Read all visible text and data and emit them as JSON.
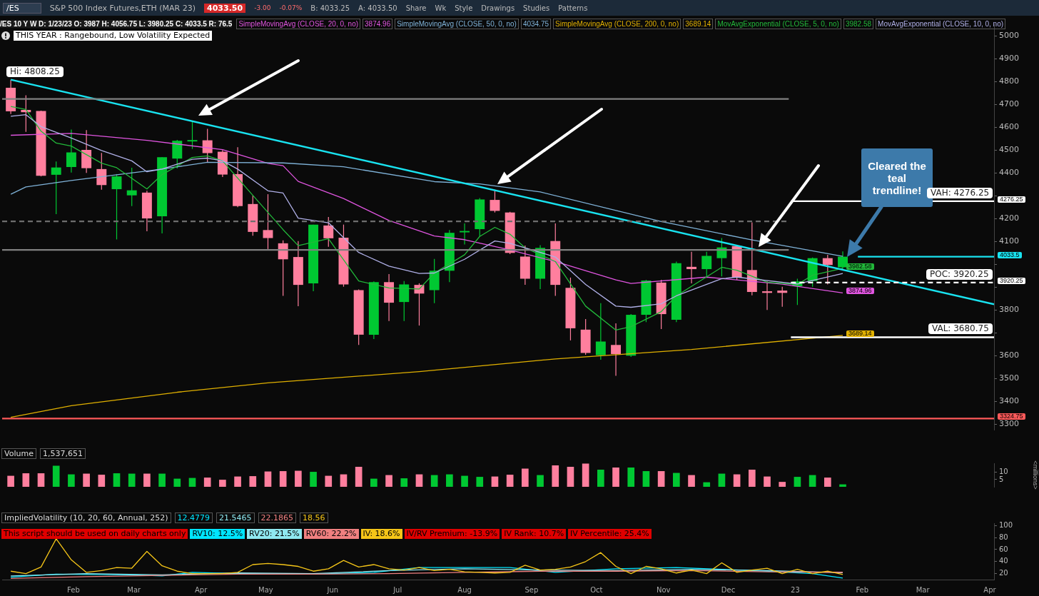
{
  "chart_data": [
    {
      "type": "candlestick",
      "title": "S&P 500 Index Futures,ETH (MAR 23)",
      "subtitle": "/ES 10 Y W D: 1/23/23 O: 3987 H: 4056.75 L: 3980.25 C: 4033.5 R: 76.5",
      "x": [
        "2022-01-03",
        "2022-01-10",
        "2022-01-17",
        "2022-01-24",
        "2022-01-31",
        "2022-02-07",
        "2022-02-14",
        "2022-02-21",
        "2022-02-28",
        "2022-03-07",
        "2022-03-14",
        "2022-03-21",
        "2022-03-28",
        "2022-04-04",
        "2022-04-11",
        "2022-04-18",
        "2022-04-25",
        "2022-05-02",
        "2022-05-09",
        "2022-05-16",
        "2022-05-23",
        "2022-05-30",
        "2022-06-06",
        "2022-06-13",
        "2022-06-20",
        "2022-06-27",
        "2022-07-04",
        "2022-07-11",
        "2022-07-18",
        "2022-07-25",
        "2022-08-01",
        "2022-08-08",
        "2022-08-15",
        "2022-08-22",
        "2022-08-29",
        "2022-09-05",
        "2022-09-12",
        "2022-09-19",
        "2022-09-26",
        "2022-10-03",
        "2022-10-10",
        "2022-10-17",
        "2022-10-24",
        "2022-10-31",
        "2022-11-07",
        "2022-11-14",
        "2022-11-21",
        "2022-11-28",
        "2022-12-05",
        "2022-12-12",
        "2022-12-19",
        "2022-12-26",
        "2023-01-02",
        "2023-01-09",
        "2023-01-16",
        "2023-01-23"
      ],
      "ohlc": [
        [
          4773,
          4808.25,
          4658,
          4670
        ],
        [
          4676,
          4740,
          4580,
          4666
        ],
        [
          4671,
          4673,
          4385,
          4388
        ],
        [
          4392,
          4450,
          4220,
          4424
        ],
        [
          4426,
          4590,
          4402,
          4490
        ],
        [
          4501,
          4588,
          4400,
          4421
        ],
        [
          4417,
          4488,
          4327,
          4347
        ],
        [
          4329,
          4395,
          4109,
          4385
        ],
        [
          4302,
          4423,
          4255,
          4324
        ],
        [
          4314,
          4322,
          4145,
          4201
        ],
        [
          4210,
          4469,
          4135,
          4469
        ],
        [
          4463,
          4545,
          4420,
          4541
        ],
        [
          4538,
          4626,
          4505,
          4544
        ],
        [
          4543,
          4593,
          4447,
          4487
        ],
        [
          4493,
          4500,
          4382,
          4393
        ],
        [
          4395,
          4513,
          4250,
          4255
        ],
        [
          4264,
          4302,
          4125,
          4142
        ],
        [
          4150,
          4307,
          4067,
          4115
        ],
        [
          4092,
          4105,
          3862,
          4022
        ],
        [
          4032,
          4102,
          3817,
          3910
        ],
        [
          3917,
          4174,
          3882,
          4174
        ],
        [
          4170,
          4207,
          4077,
          4114
        ],
        [
          4117,
          4174,
          3902,
          3912
        ],
        [
          3887,
          3890,
          3647,
          3692
        ],
        [
          3692,
          3925,
          3673,
          3922
        ],
        [
          3922,
          3957,
          3752,
          3832
        ],
        [
          3835,
          3927,
          3752,
          3912
        ],
        [
          3910,
          3917,
          3732,
          3872
        ],
        [
          3887,
          4024,
          3830,
          3972
        ],
        [
          3972,
          4150,
          3922,
          4138
        ],
        [
          4140,
          4179,
          4087,
          4146
        ],
        [
          4154,
          4290,
          4122,
          4284
        ],
        [
          4282,
          4327,
          4227,
          4234
        ],
        [
          4227,
          4230,
          4045,
          4050
        ],
        [
          4034,
          4082,
          3910,
          3937
        ],
        [
          3937,
          4084,
          3892,
          4072
        ],
        [
          4102,
          4179,
          3862,
          3910
        ],
        [
          3897,
          3942,
          3667,
          3720
        ],
        [
          3714,
          3760,
          3604,
          3612
        ],
        [
          3602,
          3830,
          3582,
          3662
        ],
        [
          3647,
          3742,
          3512,
          3607
        ],
        [
          3600,
          3782,
          3595,
          3779
        ],
        [
          3779,
          3932,
          3747,
          3929
        ],
        [
          3920,
          3932,
          3717,
          3782
        ],
        [
          3757,
          4012,
          3747,
          4005
        ],
        [
          3989,
          4055,
          3917,
          3979
        ],
        [
          3979,
          4055,
          3947,
          4037
        ],
        [
          4027,
          4115,
          3947,
          4074
        ],
        [
          4080,
          4082,
          3932,
          3942
        ],
        [
          3975,
          4184,
          3864,
          3879
        ],
        [
          3882,
          3925,
          3800,
          3875
        ],
        [
          3885,
          3902,
          3814,
          3875
        ],
        [
          3904,
          3937,
          3822,
          3925
        ],
        [
          3927,
          4030,
          3902,
          4027
        ],
        [
          4027,
          4042,
          3912,
          3997
        ],
        [
          3987,
          4056.75,
          3980.25,
          4033.5
        ]
      ],
      "colors": [
        "#ff7f9e",
        "#ff7f9e",
        "#ff7f9e",
        "#00c832",
        "#00c832",
        "#ff7f9e",
        "#ff7f9e",
        "#00c832",
        "#00c832",
        "#ff7f9e",
        "#00c832",
        "#00c832",
        "#00c832",
        "#ff7f9e",
        "#ff7f9e",
        "#ff7f9e",
        "#ff7f9e",
        "#ff7f9e",
        "#ff7f9e",
        "#ff7f9e",
        "#00c832",
        "#ff7f9e",
        "#ff7f9e",
        "#ff7f9e",
        "#00c832",
        "#ff7f9e",
        "#00c832",
        "#ff7f9e",
        "#00c832",
        "#00c832",
        "#00c832",
        "#00c832",
        "#ff7f9e",
        "#ff7f9e",
        "#ff7f9e",
        "#00c832",
        "#ff7f9e",
        "#ff7f9e",
        "#ff7f9e",
        "#00c832",
        "#ff7f9e",
        "#00c832",
        "#00c832",
        "#ff7f9e",
        "#00c832",
        "#ff7f9e",
        "#00c832",
        "#00c832",
        "#ff7f9e",
        "#ff7f9e",
        "#ff7f9e",
        "#ff7f9e",
        "#00c832",
        "#00c832",
        "#ff7f9e",
        "#00c832"
      ],
      "series": [
        {
          "name": "SimpleMovingAvg (CLOSE, 20, 0, no)",
          "type": "line",
          "color": "#e055e0",
          "x": [
            "2022-01-03",
            "2022-01-31",
            "2022-03-07",
            "2022-04-11",
            "2022-05-02",
            "2022-05-09",
            "2022-05-16",
            "2022-06-06",
            "2022-06-27",
            "2022-07-18",
            "2022-08-01",
            "2022-08-22",
            "2022-09-12",
            "2022-10-10",
            "2022-10-17",
            "2022-11-21",
            "2022-12-26",
            "2023-01-23"
          ],
          "values": [
            4565,
            4573,
            4543,
            4502,
            4442,
            4432,
            4363,
            4288,
            4192,
            4124,
            4108,
            4063,
            4012,
            3932,
            3916,
            3944,
            3913,
            3874.96
          ],
          "value_labels": [
            null,
            null,
            null,
            null,
            null,
            null,
            null,
            null,
            null,
            null,
            null,
            null,
            null,
            null,
            null,
            null,
            null,
            "3874.96"
          ]
        },
        {
          "name": "SimpleMovingAvg (CLOSE, 50, 0, no)",
          "type": "line",
          "color": "#7fb2d8",
          "x": [
            "2022-01-03",
            "2022-01-10",
            "2022-01-31",
            "2022-03-14",
            "2022-04-04",
            "2022-05-09",
            "2022-06-06",
            "2022-07-18",
            "2022-08-08",
            "2022-09-05",
            "2022-10-31",
            "2022-12-12",
            "2023-01-23"
          ],
          "values": [
            4307,
            4339,
            4367,
            4417,
            4447,
            4444,
            4427,
            4362,
            4352,
            4317,
            4187,
            4107,
            4034.75
          ]
        },
        {
          "name": "SimpleMovingAvg (CLOSE, 200, 0, no)",
          "type": "line",
          "color": "#e0b000",
          "x": [
            "2022-01-03",
            "2022-01-31",
            "2022-03-21",
            "2022-05-02",
            "2022-07-11",
            "2022-09-12",
            "2022-11-14",
            "2023-01-23"
          ],
          "values": [
            3330,
            3381,
            3440,
            3481,
            3530,
            3586,
            3627,
            3689.14
          ],
          "value_labels": [
            null,
            null,
            null,
            null,
            null,
            null,
            null,
            "3689.14"
          ]
        },
        {
          "name": "MovAvgExponential (CLOSE, 5, 0, no)",
          "type": "line",
          "color": "#22b83a",
          "x": [
            "2022-01-03",
            "2022-01-10",
            "2022-01-17",
            "2022-01-24",
            "2022-01-31",
            "2022-02-14",
            "2022-02-21",
            "2022-03-07",
            "2022-03-14",
            "2022-03-28",
            "2022-04-04",
            "2022-04-11",
            "2022-04-25",
            "2022-05-09",
            "2022-05-16",
            "2022-05-30",
            "2022-06-13",
            "2022-06-27",
            "2022-07-11",
            "2022-07-18",
            "2022-08-01",
            "2022-08-08",
            "2022-08-15",
            "2022-08-22",
            "2022-08-29",
            "2022-09-12",
            "2022-09-26",
            "2022-10-10",
            "2022-10-17",
            "2022-10-31",
            "2022-11-07",
            "2022-11-28",
            "2022-12-05",
            "2022-12-19",
            "2023-01-02",
            "2023-01-09",
            "2023-01-23"
          ],
          "values": [
            4691,
            4678,
            4583,
            4531,
            4518,
            4443,
            4423,
            4330,
            4393,
            4468,
            4475,
            4453,
            4302,
            4152,
            4082,
            4112,
            3927,
            3897,
            3892,
            3962,
            4042,
            4122,
            4162,
            4132,
            4072,
            4012,
            3817,
            3712,
            3727,
            3793,
            3862,
            3987,
            3974,
            3922,
            3912,
            3952,
            3982.58
          ],
          "value_labels": [
            null,
            null,
            null,
            null,
            null,
            null,
            null,
            null,
            null,
            null,
            null,
            null,
            null,
            null,
            null,
            null,
            null,
            null,
            null,
            null,
            null,
            null,
            null,
            null,
            null,
            null,
            null,
            null,
            null,
            null,
            null,
            null,
            null,
            null,
            null,
            null,
            "3982.58"
          ]
        },
        {
          "name": "MovAvgExponential (CLOSE, 10, 0, no)",
          "type": "line",
          "color": "#b0b0e8",
          "x": [
            "2022-01-03",
            "2022-01-10",
            "2022-01-17",
            "2022-01-31",
            "2022-02-14",
            "2022-02-28",
            "2022-03-07",
            "2022-03-14",
            "2022-03-28",
            "2022-04-04",
            "2022-04-11",
            "2022-04-18",
            "2022-05-02",
            "2022-05-09",
            "2022-05-16",
            "2022-05-30",
            "2022-06-13",
            "2022-06-27",
            "2022-07-11",
            "2022-07-18",
            "2022-08-01",
            "2022-08-15",
            "2022-08-22",
            "2022-09-12",
            "2022-09-26",
            "2022-10-10",
            "2022-10-17",
            "2022-10-31",
            "2022-11-07",
            "2022-11-28",
            "2022-12-05",
            "2023-01-02",
            "2023-01-23"
          ],
          "values": [
            4648,
            4655,
            4603,
            4553,
            4498,
            4453,
            4405,
            4417,
            4460,
            4465,
            4453,
            4417,
            4322,
            4312,
            4202,
            4182,
            4052,
            3992,
            3960,
            3962,
            4022,
            4102,
            4092,
            4032,
            3912,
            3817,
            3812,
            3827,
            3862,
            3937,
            3944,
            3914,
            3960
          ]
        },
        {
          "type": "line",
          "color": "#19e3f0",
          "x": [
            "2022-01-03",
            "2023-04-03"
          ],
          "values": [
            4808.25,
            3825
          ]
        },
        {
          "type": "line",
          "color": "#808080",
          "x": [
            "2021-12-30",
            "2022-12-29"
          ],
          "values": [
            4724,
            4724
          ]
        },
        {
          "type": "line",
          "color": "#808080",
          "x": [
            "2021-12-30",
            "2022-12-29"
          ],
          "values": [
            4063,
            4063
          ]
        },
        {
          "type": "line",
          "color": "#6e6e6e",
          "line_style": "dashed",
          "x": [
            "2021-12-30",
            "2022-12-29"
          ],
          "values": [
            4188,
            4188
          ]
        },
        {
          "type": "line",
          "color": "#ffffff",
          "x": [
            "2022-12-30",
            "2023-04-03"
          ],
          "values": [
            4276.25,
            4276.25
          ],
          "value_labels": [
            null,
            "4276.25"
          ]
        },
        {
          "type": "line",
          "color": "#ffffff",
          "line_style": "dashed",
          "x": [
            "2022-12-30",
            "2023-04-03"
          ],
          "values": [
            3920.25,
            3920.25
          ],
          "value_labels": [
            null,
            "3920.25"
          ]
        },
        {
          "type": "line",
          "color": "#ffffff",
          "x": [
            "2022-12-30",
            "2023-04-03"
          ],
          "values": [
            3680.75,
            3680.75
          ]
        },
        {
          "type": "line",
          "color": "#ff5a5a",
          "x": [
            "2021-12-30",
            "2023-04-03"
          ],
          "values": [
            3324.75,
            3324.75
          ],
          "value_labels": [
            null,
            "3324.75"
          ]
        },
        {
          "type": "line",
          "color": "#19e3f0",
          "x": [
            "2023-01-30",
            "2023-04-03"
          ],
          "values": [
            4033.5,
            4033.5
          ],
          "value_labels": [
            null,
            "4033.5"
          ]
        }
      ],
      "xlim": [
        "2021-12-30",
        "2023-04-03"
      ],
      "ylim": [
        3276,
        5051
      ],
      "yticks": [
        3300,
        3400,
        3500,
        3600,
        {
          "value": 3700,
          "label": null
        },
        3800,
        {
          "value": 3900,
          "label": null
        },
        {
          "value": 4000,
          "label": null
        },
        4100,
        4200,
        {
          "value": 4300,
          "label": null
        },
        4400,
        4500,
        4600,
        4700,
        4800,
        4900,
        5000
      ],
      "tick_labels": "y",
      "marker": "none",
      "legend": "top",
      "annotations": [
        "/ES",
        "4033.50",
        "-3.00",
        "-0.07%",
        "B: 4033.25",
        "A: 4033.50",
        "Share",
        "Wk",
        "Style",
        "Drawings",
        "Studies",
        "Patterns",
        "3874.96",
        "4034.75",
        "3689.14",
        "3982.58",
        "THIS YEAR : Rangebound, Low Volatility Expected",
        "Cleared the teal trendline!",
        {
          "text": "Hi: 4808.25",
          "x": "2022-01-03",
          "y": 4808.25
        },
        {
          "text": "VAH: 4276.25",
          "x": "2023-03-20",
          "y": 4276.25
        },
        {
          "text": "POC: 3920.25",
          "x": "2023-03-20",
          "y": 3920.25
        },
        {
          "text": "VAL: 3680.75",
          "x": "2023-03-20",
          "y": 3680.75
        }
      ]
    },
    {
      "type": "bar",
      "title": "Volume",
      "ylabel": "<millions>",
      "x": [
        "2022-01-03",
        "2022-01-10",
        "2022-01-17",
        "2022-01-24",
        "2022-01-31",
        "2022-02-07",
        "2022-02-14",
        "2022-02-21",
        "2022-02-28",
        "2022-03-07",
        "2022-03-14",
        "2022-03-21",
        "2022-03-28",
        "2022-04-04",
        "2022-04-11",
        "2022-04-18",
        "2022-04-25",
        "2022-05-02",
        "2022-05-09",
        "2022-05-16",
        "2022-05-23",
        "2022-05-30",
        "2022-06-06",
        "2022-06-13",
        "2022-06-20",
        "2022-06-27",
        "2022-07-04",
        "2022-07-11",
        "2022-07-18",
        "2022-07-25",
        "2022-08-01",
        "2022-08-08",
        "2022-08-15",
        "2022-08-22",
        "2022-08-29",
        "2022-09-05",
        "2022-09-12",
        "2022-09-19",
        "2022-09-26",
        "2022-10-03",
        "2022-10-10",
        "2022-10-17",
        "2022-10-24",
        "2022-10-31",
        "2022-11-07",
        "2022-11-14",
        "2022-11-21",
        "2022-11-28",
        "2022-12-05",
        "2022-12-12",
        "2022-12-19",
        "2022-12-26",
        "2023-01-02",
        "2023-01-09",
        "2023-01-16",
        "2023-01-23"
      ],
      "values": [
        7.5,
        9.25,
        9.25,
        14.5,
        8.5,
        9,
        8.25,
        9.25,
        9,
        9,
        9,
        5.5,
        6,
        6.25,
        4.75,
        7,
        7.25,
        10.5,
        10.75,
        11,
        10.25,
        7.5,
        8.5,
        13.75,
        5.5,
        8,
        5.75,
        8.5,
        8,
        8.5,
        7.5,
        6.75,
        7,
        8.25,
        12.5,
        8,
        14.75,
        13.75,
        16,
        11.75,
        13.25,
        13.25,
        10.75,
        10.75,
        9.5,
        8,
        3,
        9,
        8.5,
        11.75,
        7,
        3.25,
        6.75,
        8,
        6.25,
        1.537651
      ],
      "colors": [
        "#ff7f9e",
        "#ff7f9e",
        "#ff7f9e",
        "#00c832",
        "#00c832",
        "#ff7f9e",
        "#ff7f9e",
        "#00c832",
        "#00c832",
        "#ff7f9e",
        "#00c832",
        "#00c832",
        "#00c832",
        "#ff7f9e",
        "#ff7f9e",
        "#ff7f9e",
        "#ff7f9e",
        "#ff7f9e",
        "#ff7f9e",
        "#ff7f9e",
        "#00c832",
        "#ff7f9e",
        "#ff7f9e",
        "#ff7f9e",
        "#00c832",
        "#ff7f9e",
        "#00c832",
        "#ff7f9e",
        "#00c832",
        "#00c832",
        "#00c832",
        "#00c832",
        "#ff7f9e",
        "#ff7f9e",
        "#ff7f9e",
        "#00c832",
        "#ff7f9e",
        "#ff7f9e",
        "#ff7f9e",
        "#00c832",
        "#ff7f9e",
        "#00c832",
        "#00c832",
        "#ff7f9e",
        "#00c832",
        "#ff7f9e",
        "#00c832",
        "#00c832",
        "#ff7f9e",
        "#ff7f9e",
        "#ff7f9e",
        "#ff7f9e",
        "#00c832",
        "#00c832",
        "#ff7f9e",
        "#00c832"
      ],
      "xlim": [
        "2021-12-30",
        "2023-04-03"
      ],
      "ylim": [
        0,
        16.4
      ],
      "yticks": [
        5,
        10
      ],
      "tick_labels": "y",
      "annotations": [
        "1,537,651"
      ]
    },
    {
      "type": "line",
      "title": "ImpliedVolatility (10, 20, 60, Annual, 252)",
      "x": [
        "2022-01-03",
        "2022-01-10",
        "2022-01-17",
        "2022-01-24",
        "2022-01-31",
        "2022-02-07",
        "2022-02-14",
        "2022-02-21",
        "2022-02-28",
        "2022-03-07",
        "2022-03-14",
        "2022-03-21",
        "2022-03-28",
        "2022-04-04",
        "2022-04-11",
        "2022-04-18",
        "2022-04-25",
        "2022-05-02",
        "2022-05-09",
        "2022-05-16",
        "2022-05-23",
        "2022-05-30",
        "2022-06-06",
        "2022-06-13",
        "2022-06-20",
        "2022-06-27",
        "2022-07-04",
        "2022-07-11",
        "2022-07-18",
        "2022-07-25",
        "2022-08-01",
        "2022-08-08",
        "2022-08-15",
        "2022-08-22",
        "2022-08-29",
        "2022-09-05",
        "2022-09-12",
        "2022-09-19",
        "2022-09-26",
        "2022-10-03",
        "2022-10-10",
        "2022-10-17",
        "2022-10-24",
        "2022-10-31",
        "2022-11-07",
        "2022-11-14",
        "2022-11-21",
        "2022-11-28",
        "2022-12-05",
        "2022-12-12",
        "2022-12-19",
        "2022-12-26",
        "2023-01-02",
        "2023-01-09",
        "2023-01-16",
        "2023-01-23"
      ],
      "series": [
        {
          "color": "#00e5ff",
          "x": [
            "2022-01-03",
            "2022-01-24",
            "2022-02-28",
            "2022-03-14",
            "2022-03-28",
            "2022-04-18",
            "2022-05-23",
            "2022-06-20",
            "2022-07-11",
            "2022-08-22",
            "2022-09-12",
            "2022-10-10",
            "2022-11-07",
            "2022-11-28",
            "2022-12-19",
            "2023-01-09",
            "2023-01-23"
          ],
          "values": [
            14,
            19,
            18,
            16,
            22,
            20,
            19,
            22,
            30,
            30,
            22,
            28,
            30,
            27,
            24,
            20,
            12.5
          ]
        },
        {
          "color": "#8fe8f0",
          "x": [
            "2022-01-03",
            "2022-02-07",
            "2022-03-14",
            "2022-04-18",
            "2022-05-23",
            "2022-06-27",
            "2022-08-01",
            "2022-09-05",
            "2022-10-10",
            "2022-11-14",
            "2022-12-19",
            "2023-01-23"
          ],
          "values": [
            16,
            20,
            18,
            21,
            20,
            25,
            28,
            26,
            25,
            27,
            25,
            21.5
          ]
        },
        {
          "color": "#f08080",
          "x": [
            "2022-01-03",
            "2022-02-07",
            "2022-03-14",
            "2022-04-18",
            "2022-05-23",
            "2022-06-27",
            "2022-08-01",
            "2022-09-05",
            "2022-10-10",
            "2022-11-14",
            "2022-12-19",
            "2023-01-23"
          ],
          "values": [
            12,
            15,
            17,
            19,
            19,
            20,
            22,
            24,
            24,
            25,
            23,
            22.2
          ]
        },
        {
          "color": "#f5c518",
          "values": [
            24,
            20,
            31,
            78,
            43,
            22,
            25,
            30,
            29,
            57,
            33,
            24,
            20,
            20,
            20,
            22,
            35,
            37,
            35,
            32,
            24,
            28,
            42,
            31,
            35,
            28,
            26,
            30,
            25,
            27,
            23,
            22,
            21,
            22,
            34,
            26,
            27,
            31,
            40,
            55,
            32,
            20,
            32,
            28,
            21,
            26,
            20,
            38,
            22,
            26,
            29,
            20,
            27,
            20,
            24,
            18.6
          ]
        }
      ],
      "xlim": [
        "2021-12-30",
        "2023-04-03"
      ],
      "xticks": [
        {
          "value": "2022-02-01",
          "label": "Feb"
        },
        {
          "value": "2022-03-01",
          "label": "Mar"
        },
        {
          "value": "2022-04-01",
          "label": "Apr"
        },
        {
          "value": "2022-05-01",
          "label": "May"
        },
        {
          "value": "2022-06-01",
          "label": "Jun"
        },
        {
          "value": "2022-07-01",
          "label": "Jul"
        },
        {
          "value": "2022-08-01",
          "label": "Aug"
        },
        {
          "value": "2022-09-01",
          "label": "Sep"
        },
        {
          "value": "2022-10-01",
          "label": "Oct"
        },
        {
          "value": "2022-11-01",
          "label": "Nov"
        },
        {
          "value": "2022-12-01",
          "label": "Dec"
        },
        {
          "value": "2023-01-01",
          "label": "23"
        },
        {
          "value": "2023-02-01",
          "label": "Feb"
        },
        {
          "value": "2023-03-01",
          "label": "Mar"
        },
        {
          "value": "2023-04-01",
          "label": "Apr"
        }
      ],
      "ylim": [
        10,
        104
      ],
      "yticks": [
        20,
        40,
        60,
        80,
        100
      ],
      "marker": "none",
      "annotations": [
        "12.4779",
        "21.5465",
        "22.1865",
        "18.56",
        "This script should be used on daily charts only",
        "RV10: 12.5%",
        "RV20: 21.5%",
        "RV60: 22.2%",
        "IV: 18.6%",
        "IV/RV Premium: -13.9%",
        "IV Rank: 10.7%",
        "IV Percentile: 25.4%"
      ]
    }
  ]
}
